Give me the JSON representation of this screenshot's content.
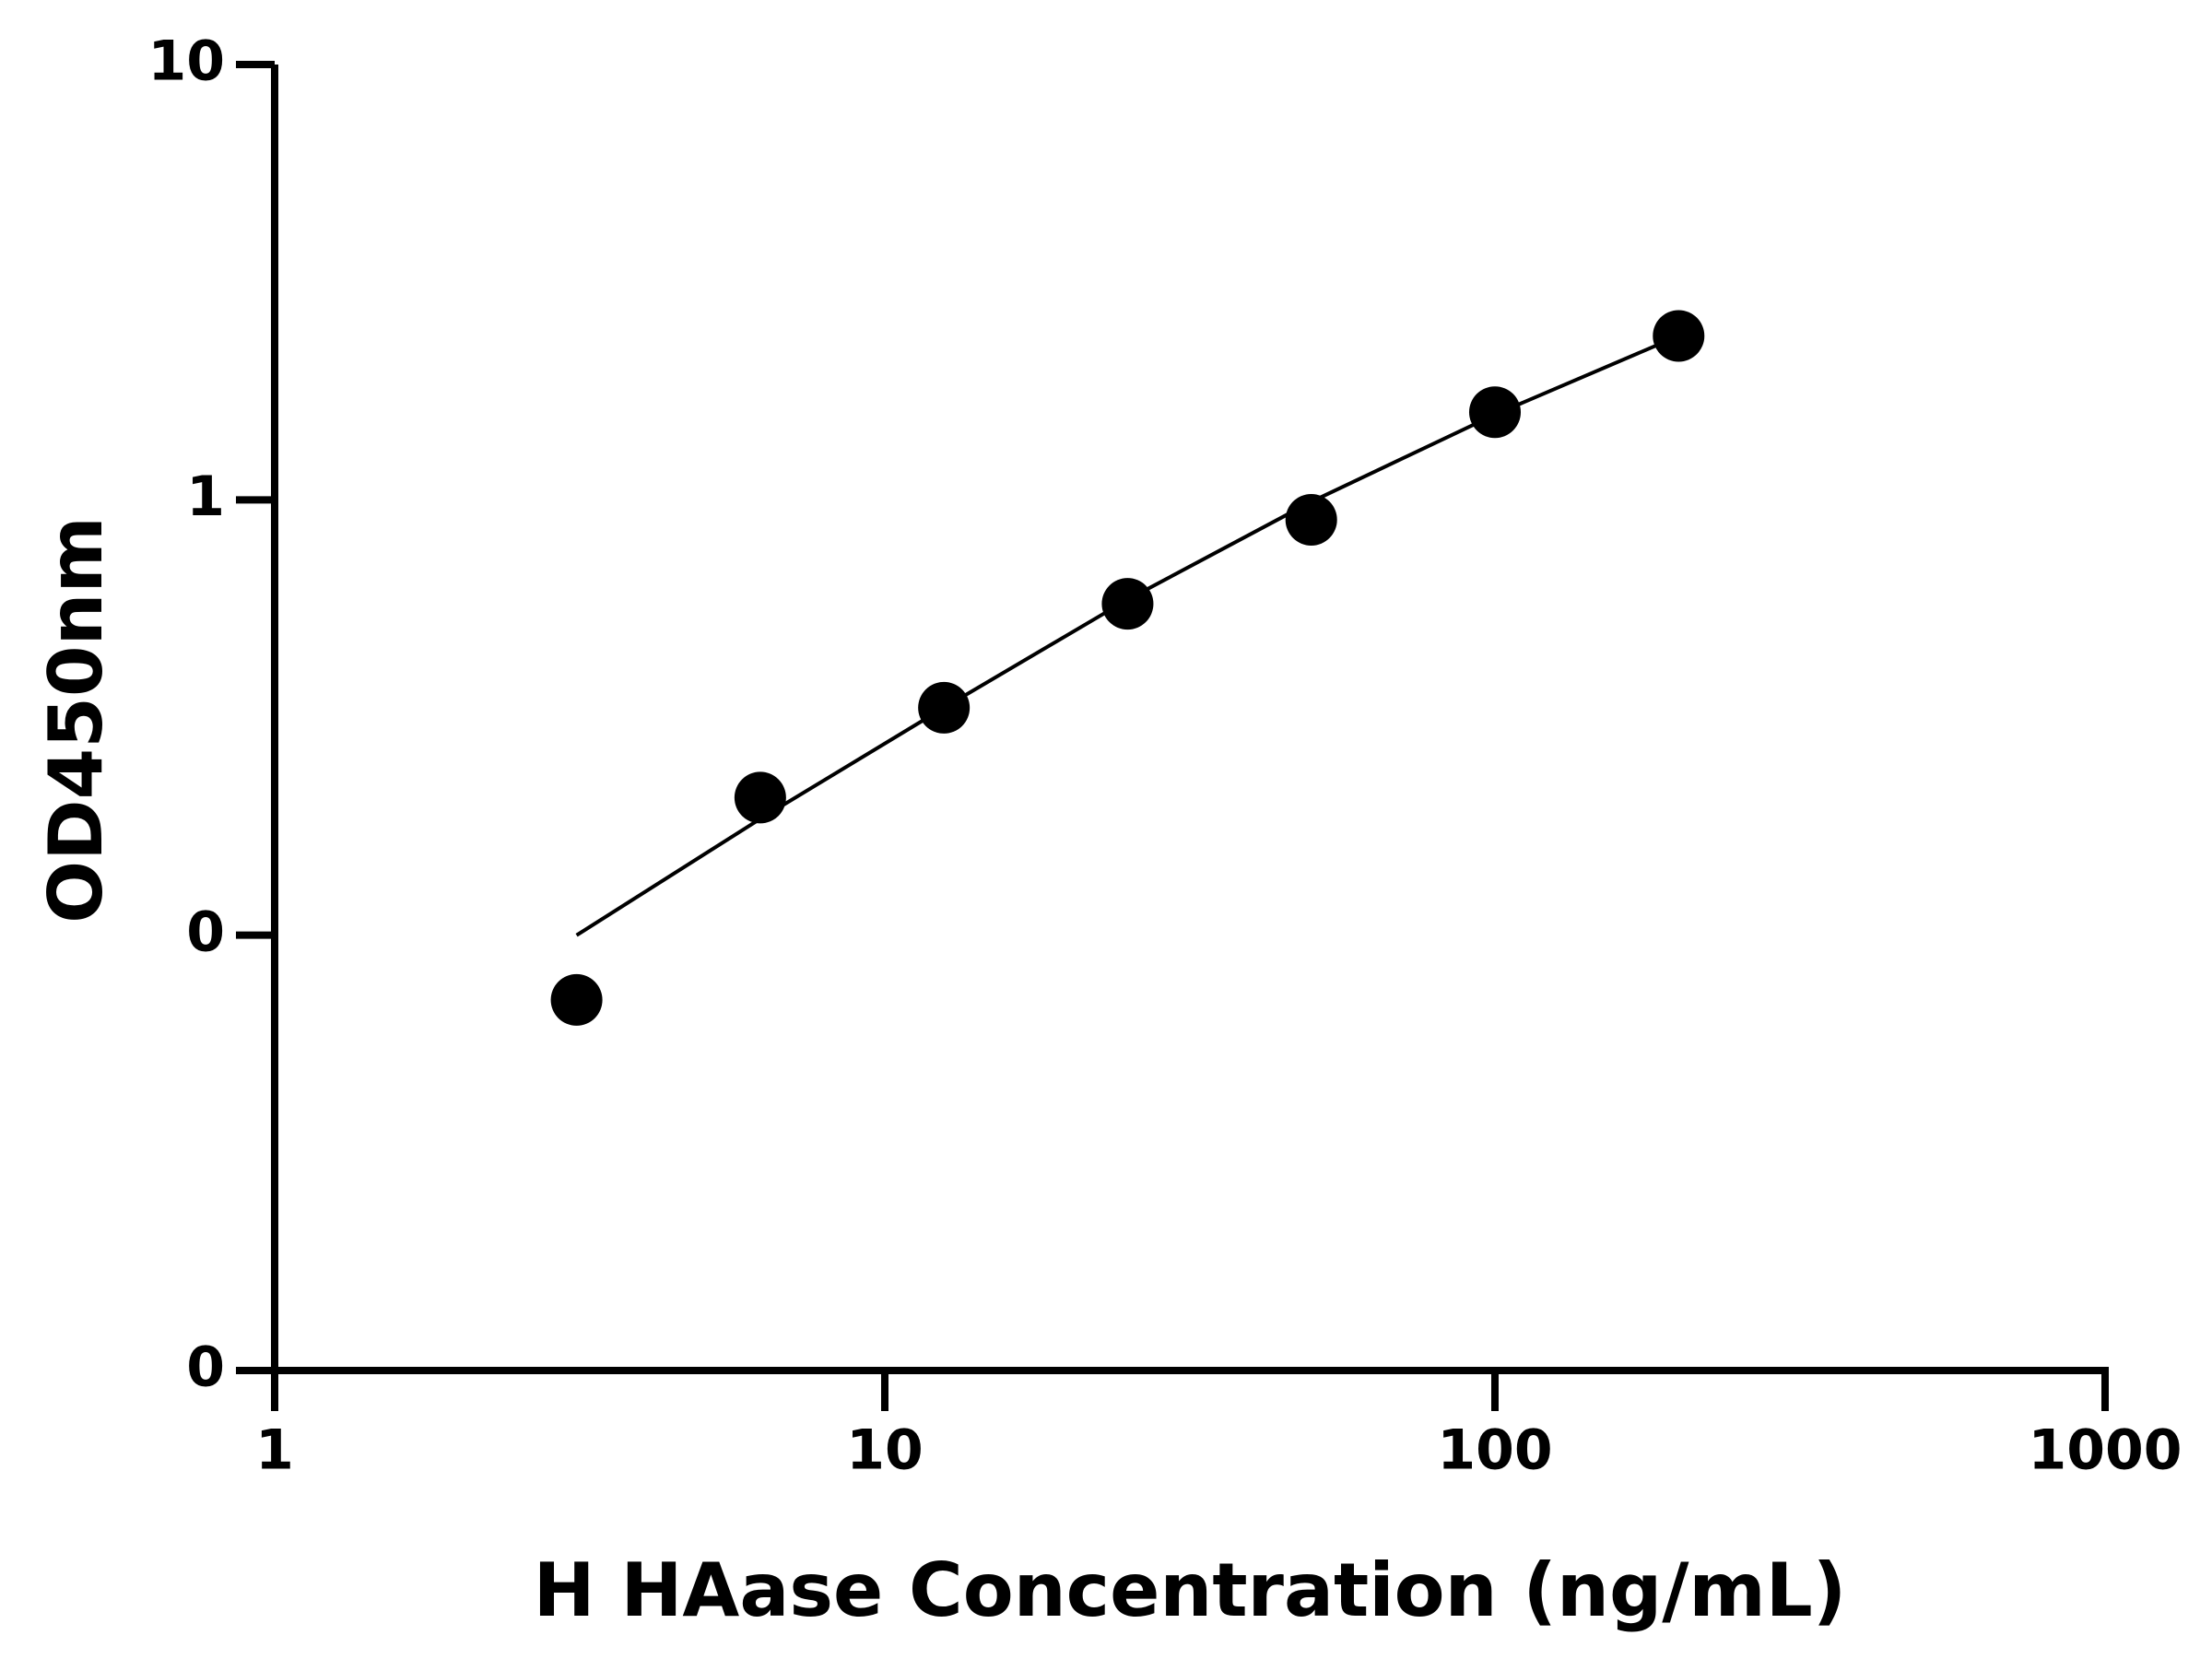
{
  "chart_data": {
    "type": "scatter",
    "x_label": "H HAase Concentration (ng/mL)",
    "y_label": "OD450nm",
    "x_log": true,
    "y_log": true,
    "xlim": [
      1,
      1000
    ],
    "ylim": [
      0.01,
      10
    ],
    "xticks": [
      1,
      10,
      100,
      1000
    ],
    "yticks": [
      {
        "value": 0.01,
        "label": "0"
      },
      {
        "value": 0.1,
        "label": "0"
      },
      1,
      10
    ],
    "color": "#000000",
    "x": [
      3.125,
      6.25,
      12.5,
      25,
      50,
      100,
      200
    ],
    "values": [
      0.071,
      0.207,
      0.333,
      0.577,
      0.9,
      1.59,
      2.38
    ],
    "fit": {
      "x": [
        3.125,
        6.25,
        12.5,
        25,
        50,
        100,
        200
      ],
      "values": [
        0.1,
        0.185,
        0.333,
        0.59,
        0.99,
        1.57,
        2.38
      ]
    }
  }
}
